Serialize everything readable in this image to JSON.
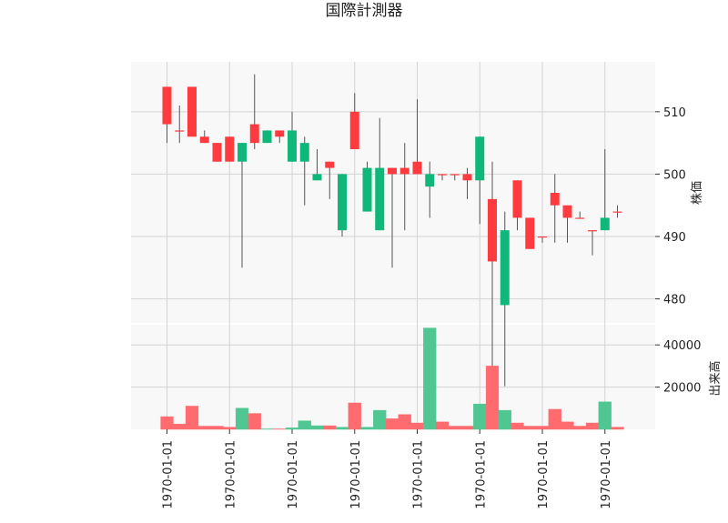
{
  "chart_data": {
    "type": "candlestick",
    "title": "国際計測器",
    "price_axis": {
      "label": "株価",
      "ticks": [
        480,
        490,
        500,
        510
      ],
      "ylim": [
        476,
        518
      ]
    },
    "volume_axis": {
      "label": "出来高",
      "ticks": [
        20000,
        40000
      ],
      "ylim": [
        0,
        50000
      ]
    },
    "x_tick_labels": [
      "1970-01-01",
      "1970-01-01",
      "1970-01-01",
      "1970-01-01",
      "1970-01-01",
      "1970-01-01",
      "1970-01-01",
      "1970-01-01"
    ],
    "x_ticks_at_candle": [
      0,
      5,
      10,
      15,
      20,
      25,
      30,
      35
    ],
    "colors": {
      "up": "#0fb77a",
      "down": "#ff3b3f",
      "vol_up": "#50c792",
      "vol_down": "#ff6b6f",
      "plot_bg": "#f8f8f8",
      "grid": "#d3d3d3"
    },
    "ohlc": [
      {
        "o": 508,
        "h": 514,
        "l": 505,
        "c": 514
      },
      {
        "o": 507,
        "h": 511,
        "l": 505,
        "c": 507
      },
      {
        "o": 506,
        "h": 514,
        "l": 506,
        "c": 514
      },
      {
        "o": 505,
        "h": 507,
        "l": 505,
        "c": 506
      },
      {
        "o": 502,
        "h": 505,
        "l": 502,
        "c": 505
      },
      {
        "o": 502,
        "h": 506,
        "l": 502,
        "c": 506
      },
      {
        "o": 505,
        "h": 505,
        "l": 485,
        "c": 502
      },
      {
        "o": 505,
        "h": 516,
        "l": 504,
        "c": 508
      },
      {
        "o": 507,
        "h": 507,
        "l": 505,
        "c": 505
      },
      {
        "o": 506,
        "h": 507,
        "l": 505,
        "c": 507
      },
      {
        "o": 507,
        "h": 510,
        "l": 502,
        "c": 502
      },
      {
        "o": 505,
        "h": 506,
        "l": 495,
        "c": 502
      },
      {
        "o": 500,
        "h": 504,
        "l": 499,
        "c": 499
      },
      {
        "o": 501,
        "h": 502,
        "l": 496,
        "c": 502
      },
      {
        "o": 500,
        "h": 500,
        "l": 490,
        "c": 491
      },
      {
        "o": 504,
        "h": 513,
        "l": 504,
        "c": 510
      },
      {
        "o": 501,
        "h": 502,
        "l": 494,
        "c": 494
      },
      {
        "o": 501,
        "h": 509,
        "l": 491,
        "c": 491
      },
      {
        "o": 500,
        "h": 501,
        "l": 485,
        "c": 501
      },
      {
        "o": 500,
        "h": 505,
        "l": 491,
        "c": 501
      },
      {
        "o": 500,
        "h": 512,
        "l": 500,
        "c": 502
      },
      {
        "o": 500,
        "h": 502,
        "l": 493,
        "c": 498
      },
      {
        "o": 500,
        "h": 500,
        "l": 499,
        "c": 500
      },
      {
        "o": 500,
        "h": 500,
        "l": 499,
        "c": 500
      },
      {
        "o": 499,
        "h": 501,
        "l": 496,
        "c": 500
      },
      {
        "o": 506,
        "h": 506,
        "l": 492,
        "c": 499
      },
      {
        "o": 486,
        "h": 502,
        "l": 467,
        "c": 496
      },
      {
        "o": 491,
        "h": 494,
        "l": 466,
        "c": 479
      },
      {
        "o": 493,
        "h": 499,
        "l": 491,
        "c": 499
      },
      {
        "o": 488,
        "h": 493,
        "l": 488,
        "c": 493
      },
      {
        "o": 490,
        "h": 490,
        "l": 489,
        "c": 490
      },
      {
        "o": 495,
        "h": 500,
        "l": 489,
        "c": 497
      },
      {
        "o": 493,
        "h": 495,
        "l": 489,
        "c": 495
      },
      {
        "o": 493,
        "h": 494,
        "l": 493,
        "c": 493
      },
      {
        "o": 491,
        "h": 491,
        "l": 487,
        "c": 491
      },
      {
        "o": 493,
        "h": 504,
        "l": 491,
        "c": 491
      },
      {
        "o": 494,
        "h": 495,
        "l": 493,
        "c": 494
      }
    ],
    "volume": [
      6000,
      2500,
      11000,
      1500,
      1500,
      1000,
      10000,
      7500,
      200,
      200,
      700,
      4000,
      1700,
      1700,
      1000,
      12500,
      1000,
      9000,
      5000,
      7000,
      3000,
      48000,
      3500,
      1500,
      1500,
      12000,
      30000,
      9000,
      3000,
      1500,
      1500,
      9500,
      3500,
      1500,
      3000,
      13000,
      1000
    ]
  }
}
